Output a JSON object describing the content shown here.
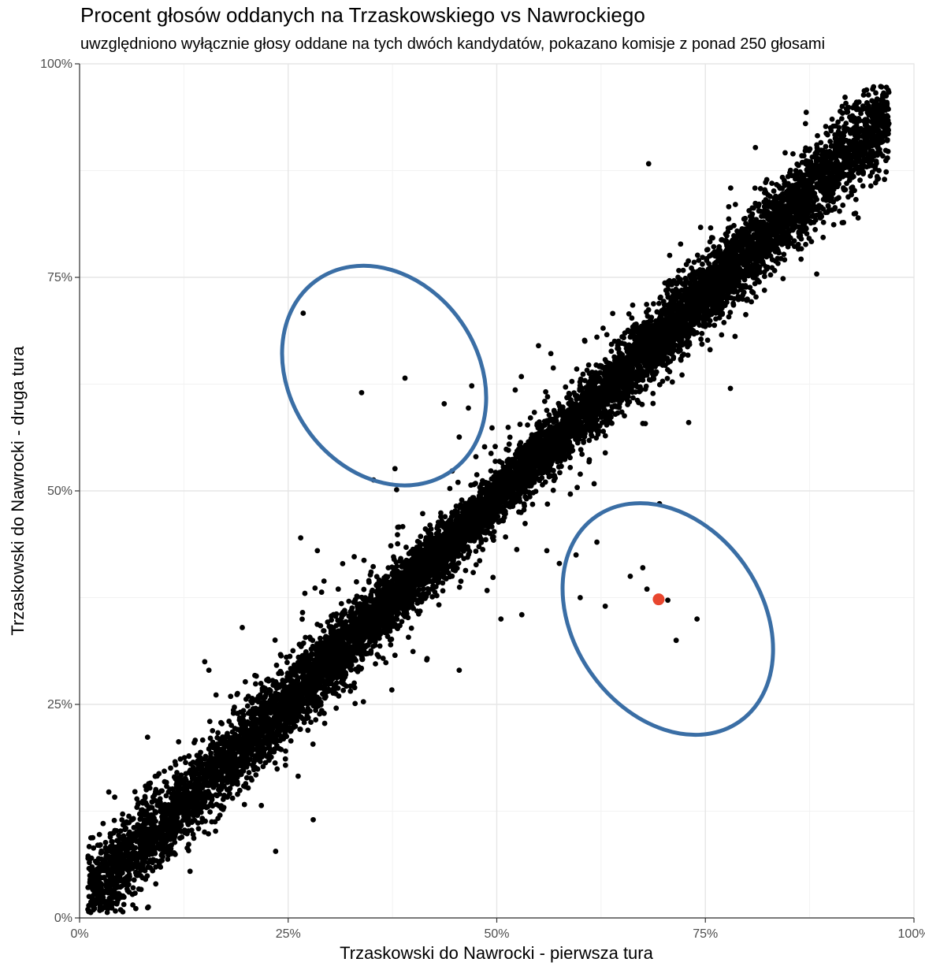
{
  "chart_data": {
    "type": "scatter",
    "title": "Procent głosów oddanych na Trzaskowskiego vs Nawrockiego",
    "subtitle": "uwzględniono wyłącznie głosy oddane na tych dwóch kandydatów, pokazano komisje z ponad 250 głosami",
    "xlabel": "Trzaskowski do Nawrocki - pierwsza tura",
    "ylabel": "Trzaskowski do Nawrocki - druga tura",
    "xlim": [
      0,
      100
    ],
    "ylim": [
      0,
      100
    ],
    "x_ticks": [
      {
        "value": 0,
        "label": "0%"
      },
      {
        "value": 25,
        "label": "25%"
      },
      {
        "value": 50,
        "label": "50%"
      },
      {
        "value": 75,
        "label": "75%"
      },
      {
        "value": 100,
        "label": "100%"
      }
    ],
    "y_ticks": [
      {
        "value": 0,
        "label": "0%"
      },
      {
        "value": 25,
        "label": "25%"
      },
      {
        "value": 50,
        "label": "50%"
      },
      {
        "value": 75,
        "label": "75%"
      },
      {
        "value": 100,
        "label": "100%"
      }
    ],
    "grid": true,
    "minor_grid": true,
    "point_color": "#000000",
    "outlier_points": [
      [
        26.8,
        70.8
      ],
      [
        33.8,
        61.5
      ],
      [
        39.0,
        63.2
      ],
      [
        43.7,
        60.2
      ],
      [
        47.0,
        62.3
      ],
      [
        46.6,
        59.7
      ],
      [
        45.5,
        56.3
      ],
      [
        47.5,
        54.0
      ],
      [
        37.8,
        52.6
      ],
      [
        68.2,
        88.3
      ],
      [
        81.0,
        90.2
      ],
      [
        87.0,
        93.0
      ],
      [
        90.0,
        92.5
      ],
      [
        95.0,
        94.5
      ],
      [
        97.0,
        93.0
      ],
      [
        93.0,
        82.5
      ],
      [
        66.0,
        68.0
      ],
      [
        62.0,
        68.0
      ],
      [
        55.0,
        67.0
      ],
      [
        31.0,
        38.5
      ],
      [
        26.5,
        44.5
      ],
      [
        28.5,
        43.0
      ],
      [
        27.0,
        38.0
      ],
      [
        19.5,
        34.0
      ],
      [
        15.0,
        30.0
      ],
      [
        15.5,
        29.0
      ],
      [
        28.0,
        11.5
      ],
      [
        23.5,
        7.8
      ],
      [
        1.0,
        1.0
      ],
      [
        45.5,
        29.0
      ],
      [
        53.0,
        35.5
      ],
      [
        57.5,
        41.5
      ],
      [
        59.5,
        42.5
      ],
      [
        60.0,
        37.5
      ],
      [
        63.0,
        36.5
      ],
      [
        66.0,
        40.0
      ],
      [
        67.5,
        41.0
      ],
      [
        68.0,
        38.5
      ],
      [
        69.5,
        37.0
      ],
      [
        70.5,
        37.2
      ],
      [
        71.5,
        32.5
      ],
      [
        74.0,
        35.0
      ],
      [
        69.5,
        48.5
      ],
      [
        62.0,
        44.0
      ],
      [
        56.0,
        43.0
      ],
      [
        50.5,
        35.0
      ],
      [
        57.0,
        51.5
      ],
      [
        73.0,
        58.0
      ],
      [
        78.0,
        62.0
      ]
    ],
    "highlight_point": {
      "x": 69.4,
      "y": 37.3,
      "color": "#E8462E"
    },
    "ellipse_color": "#3A6EA5",
    "ellipses": [
      {
        "cx": 36.5,
        "cy": 63.5,
        "rx": 14.0,
        "ry": 11.0,
        "rotation": 55
      },
      {
        "cx": 70.5,
        "cy": 35.0,
        "rx": 15.0,
        "ry": 11.0,
        "rotation": 55
      }
    ]
  }
}
